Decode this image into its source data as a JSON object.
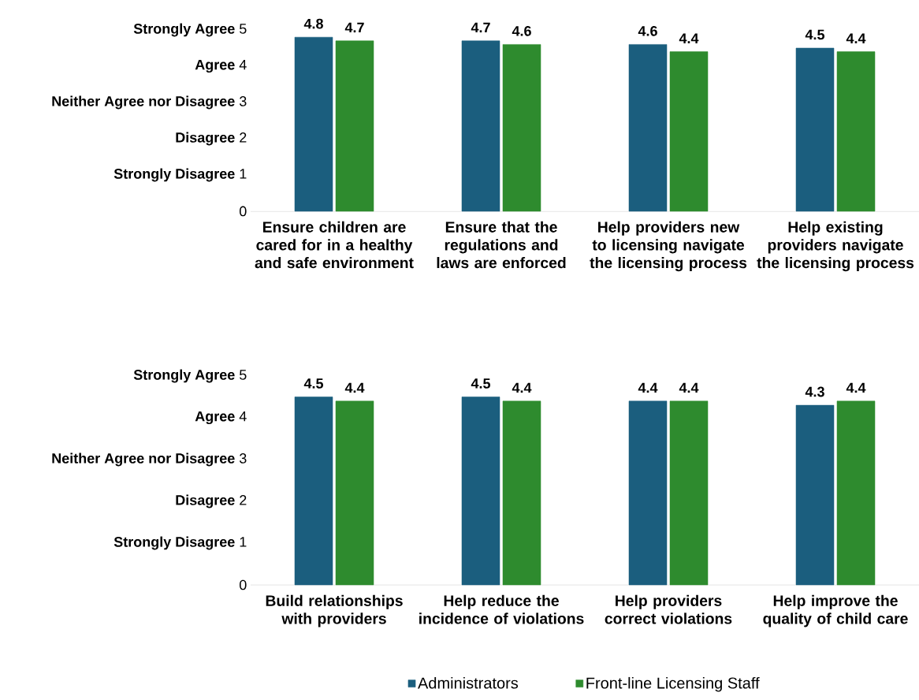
{
  "chart_data": [
    {
      "type": "bar",
      "categories": [
        "Ensure children are cared for in a healthy and safe environment",
        "Ensure that the regulations and laws are enforced",
        "Help providers new to licensing navigate the licensing process",
        "Help existing providers navigate the licensing process"
      ],
      "series": [
        {
          "color": "#1b5e7e",
          "values": [
            4.8,
            4.7,
            4.6,
            4.5
          ]
        },
        {
          "color": "#2e8b2e",
          "values": [
            4.7,
            4.6,
            4.4,
            4.4
          ]
        }
      ],
      "ylim": [
        0,
        5
      ],
      "yticks": [
        0,
        {
          "value": 1,
          "label": "**Strongly Disagree** 1"
        },
        {
          "value": 2,
          "label": "**Disagree** 2"
        },
        {
          "value": 3,
          "label": "**Neither Agree nor Disagree** 3"
        },
        {
          "value": 4,
          "label": "**Agree** 4"
        },
        {
          "value": 5,
          "label": "**Strongly Agree** 5"
        }
      ],
      "data_labels": true,
      "legend": false
    },
    {
      "type": "bar",
      "categories": [
        "Build relationships with providers",
        "Help reduce the incidence of violations",
        "Help providers correct violations",
        "Help improve the quality of child care"
      ],
      "series": [
        {
          "name": "Administrators",
          "color": "#1b5e7e",
          "values": [
            4.5,
            4.5,
            4.4,
            4.3
          ]
        },
        {
          "name": "Front-line Licensing Staff",
          "color": "#2e8b2e",
          "values": [
            4.4,
            4.4,
            4.4,
            4.4
          ]
        }
      ],
      "ylim": [
        0,
        5
      ],
      "yticks": [
        0,
        {
          "value": 1,
          "label": "**Strongly Disagree** 1"
        },
        {
          "value": 2,
          "label": "**Disagree** 2"
        },
        {
          "value": 3,
          "label": "**Neither Agree nor Disagree** 3"
        },
        {
          "value": 4,
          "label": "**Agree** 4"
        },
        {
          "value": 5,
          "label": "**Strongly Agree** 5"
        }
      ],
      "data_labels": true,
      "legend": "bottom"
    }
  ]
}
